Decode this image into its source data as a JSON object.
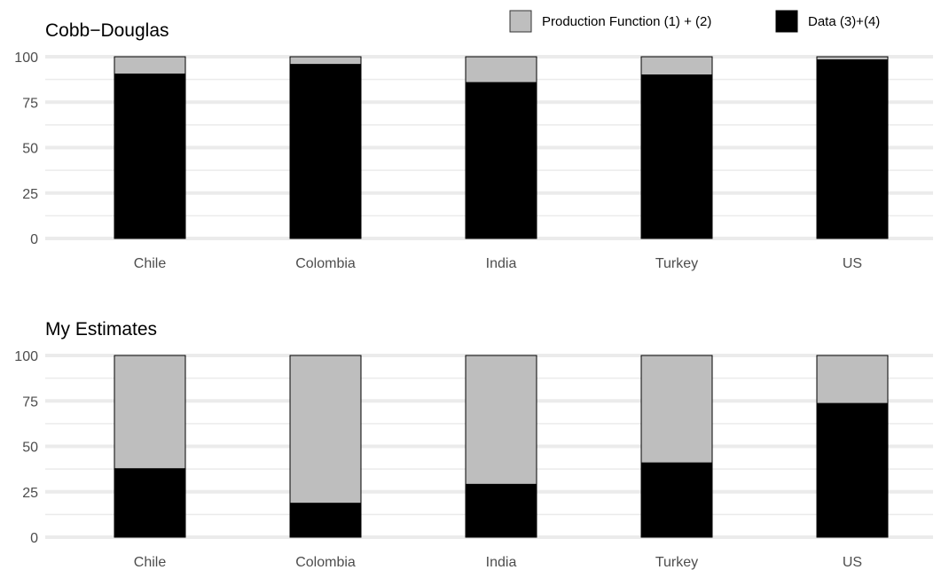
{
  "legend": {
    "items": [
      {
        "label": "Production Function (1) + (2)",
        "color": "#bebebe"
      },
      {
        "label": "Data (3)+(4)",
        "color": "#000000"
      }
    ]
  },
  "chart_data": [
    {
      "type": "bar",
      "stacked": true,
      "title": "Cobb−Douglas",
      "categories": [
        "Chile",
        "Colombia",
        "India",
        "Turkey",
        "US"
      ],
      "series": [
        {
          "name": "Data (3)+(4)",
          "color": "#000000",
          "values": [
            90.5,
            95.8,
            85.8,
            90.0,
            98.3
          ]
        },
        {
          "name": "Production Function (1) + (2)",
          "color": "#bebebe",
          "values": [
            9.5,
            4.2,
            14.2,
            10.0,
            1.7
          ]
        }
      ],
      "ylim": [
        0,
        100
      ],
      "yticks": [
        0,
        25,
        50,
        75,
        100
      ],
      "grid": true
    },
    {
      "type": "bar",
      "stacked": true,
      "title": "My Estimates",
      "categories": [
        "Chile",
        "Colombia",
        "India",
        "Turkey",
        "US"
      ],
      "series": [
        {
          "name": "Data (3)+(4)",
          "color": "#000000",
          "values": [
            37.7,
            18.7,
            29.1,
            40.9,
            73.6
          ]
        },
        {
          "name": "Production Function (1) + (2)",
          "color": "#bebebe",
          "values": [
            62.3,
            81.3,
            70.9,
            59.1,
            26.4
          ]
        }
      ],
      "ylim": [
        0,
        100
      ],
      "yticks": [
        0,
        25,
        50,
        75,
        100
      ],
      "grid": true
    }
  ]
}
